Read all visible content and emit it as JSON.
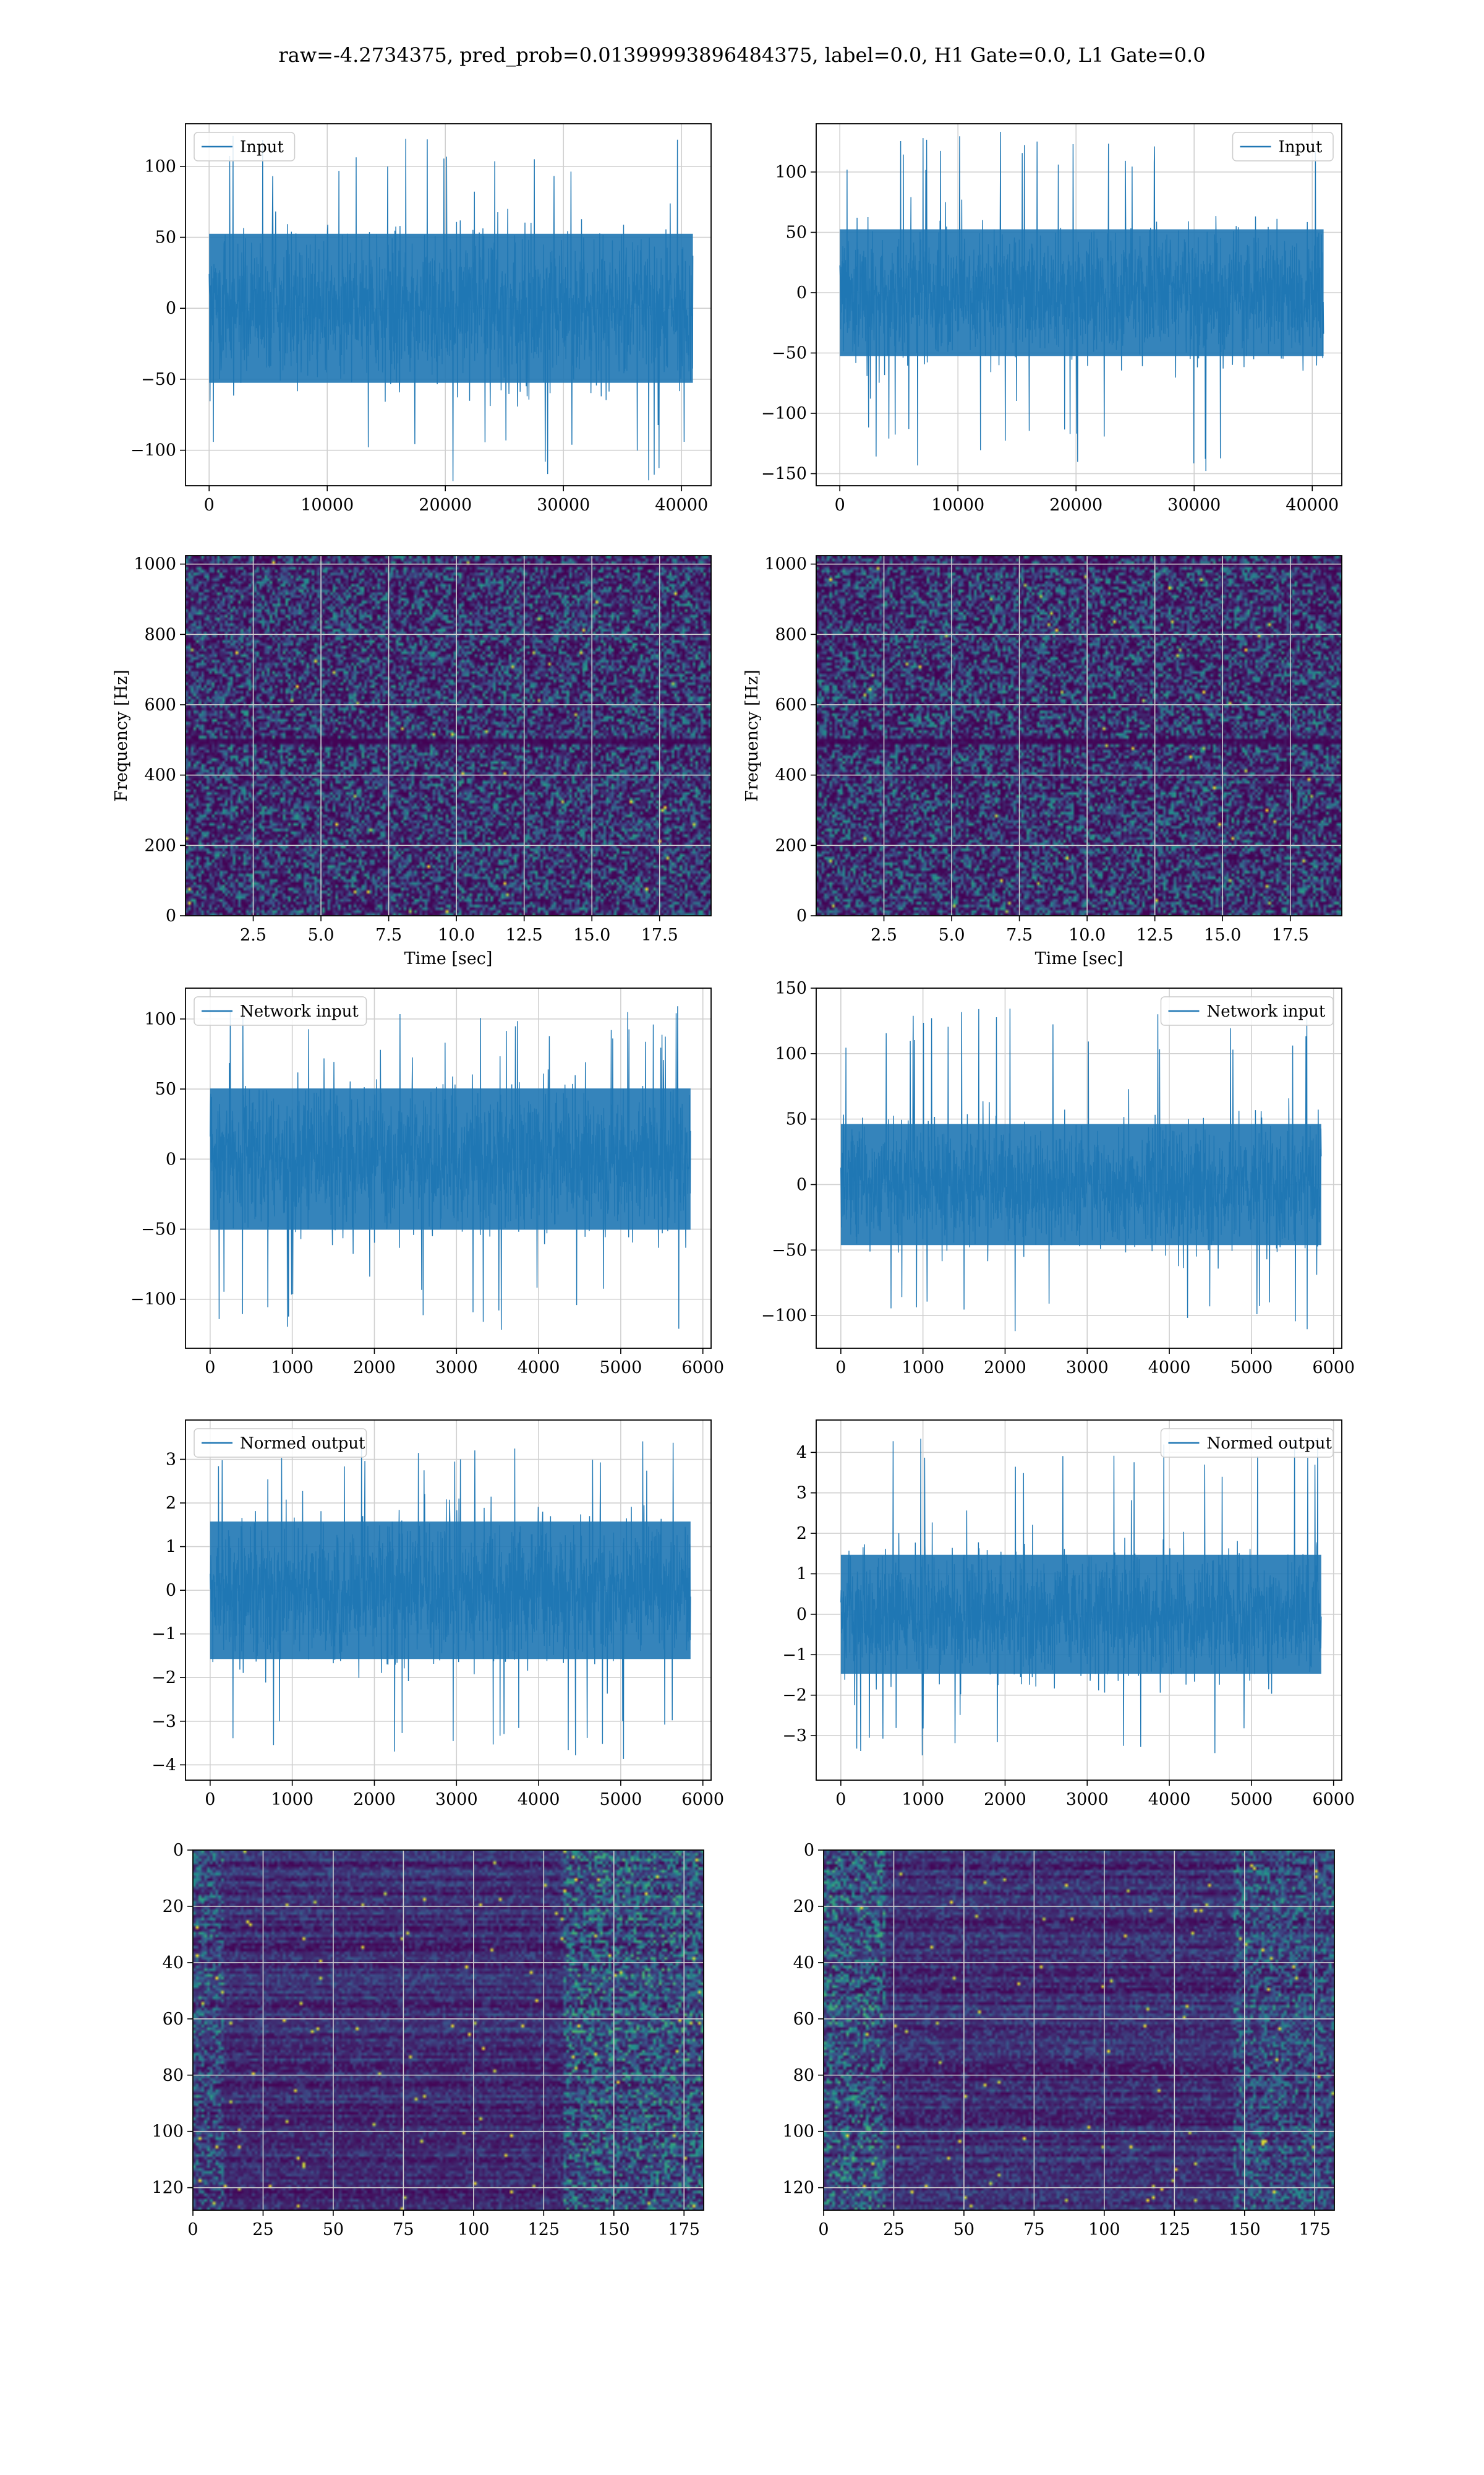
{
  "figure": {
    "title": "raw=-4.2734375, pred_prob=0.01399993896484375, label=0.0, H1 Gate=0.0, L1 Gate=0.0"
  },
  "colors": {
    "line": "#1f77b4",
    "grid": "#d0d0d0",
    "viridis_dark": "#440154",
    "viridis_mid": "#21918c",
    "viridis_bright": "#fde725"
  },
  "chart_data": [
    {
      "id": "input-h1",
      "type": "line",
      "xlim": [
        -2000,
        42500
      ],
      "ylim": [
        -125,
        130
      ],
      "xticks": [
        0,
        10000,
        20000,
        30000,
        40000
      ],
      "xtick_labels": [
        "0",
        "10000",
        "20000",
        "30000",
        "40000"
      ],
      "yticks": [
        -100,
        -50,
        0,
        50,
        100
      ],
      "ytick_labels": [
        "−100",
        "−50",
        "0",
        "50",
        "100"
      ],
      "x_range": [
        0,
        40960
      ],
      "amplitude": 25,
      "peak_min": -122,
      "peak_max": 122,
      "legend": {
        "label": "Input",
        "position": "upper left"
      },
      "grid": true,
      "xlabel": "",
      "ylabel": ""
    },
    {
      "id": "input-l1",
      "type": "line",
      "xlim": [
        -2000,
        42500
      ],
      "ylim": [
        -160,
        140
      ],
      "xticks": [
        0,
        10000,
        20000,
        30000,
        40000
      ],
      "xtick_labels": [
        "0",
        "10000",
        "20000",
        "30000",
        "40000"
      ],
      "yticks": [
        -150,
        -100,
        -50,
        0,
        50,
        100
      ],
      "ytick_labels": [
        "−150",
        "−100",
        "−50",
        "0",
        "50",
        "100"
      ],
      "x_range": [
        0,
        40960
      ],
      "amplitude": 25,
      "peak_min": -148,
      "peak_max": 135,
      "legend": {
        "label": "Input",
        "position": "upper right"
      },
      "grid": true,
      "xlabel": "",
      "ylabel": ""
    },
    {
      "id": "spectrogram-h1",
      "type": "heatmap",
      "xlim": [
        0,
        19.4
      ],
      "ylim": [
        0,
        1024
      ],
      "xticks": [
        2.5,
        5.0,
        7.5,
        10.0,
        12.5,
        15.0,
        17.5
      ],
      "xtick_labels": [
        "2.5",
        "5.0",
        "7.5",
        "10.0",
        "12.5",
        "15.0",
        "17.5"
      ],
      "yticks": [
        0,
        200,
        400,
        600,
        800,
        1000
      ],
      "ytick_labels": [
        "0",
        "200",
        "400",
        "600",
        "800",
        "1000"
      ],
      "xlabel": "Time [sec]",
      "ylabel": "Frequency [Hz]",
      "grid": true,
      "dark_bands": [
        1000,
        500
      ]
    },
    {
      "id": "spectrogram-l1",
      "type": "heatmap",
      "xlim": [
        0,
        19.4
      ],
      "ylim": [
        0,
        1024
      ],
      "xticks": [
        2.5,
        5.0,
        7.5,
        10.0,
        12.5,
        15.0,
        17.5
      ],
      "xtick_labels": [
        "2.5",
        "5.0",
        "7.5",
        "10.0",
        "12.5",
        "15.0",
        "17.5"
      ],
      "yticks": [
        0,
        200,
        400,
        600,
        800,
        1000
      ],
      "ytick_labels": [
        "0",
        "200",
        "400",
        "600",
        "800",
        "1000"
      ],
      "xlabel": "Time [sec]",
      "ylabel": "Frequency [Hz]",
      "grid": true,
      "dark_bands": [
        1000,
        500
      ]
    },
    {
      "id": "network-input-h1",
      "type": "line",
      "xlim": [
        -300,
        6100
      ],
      "ylim": [
        -135,
        122
      ],
      "xticks": [
        0,
        1000,
        2000,
        3000,
        4000,
        5000,
        6000
      ],
      "xtick_labels": [
        "0",
        "1000",
        "2000",
        "3000",
        "4000",
        "5000",
        "6000"
      ],
      "yticks": [
        -100,
        -50,
        0,
        50,
        100
      ],
      "ytick_labels": [
        "−100",
        "−50",
        "0",
        "50",
        "100"
      ],
      "x_range": [
        0,
        5850
      ],
      "amplitude": 24,
      "peak_min": -122,
      "peak_max": 110,
      "legend": {
        "label": "Network input",
        "position": "upper left"
      },
      "grid": true,
      "xlabel": "",
      "ylabel": ""
    },
    {
      "id": "network-input-l1",
      "type": "line",
      "xlim": [
        -300,
        6100
      ],
      "ylim": [
        -125,
        150
      ],
      "xticks": [
        0,
        1000,
        2000,
        3000,
        4000,
        5000,
        6000
      ],
      "xtick_labels": [
        "0",
        "1000",
        "2000",
        "3000",
        "4000",
        "5000",
        "6000"
      ],
      "yticks": [
        -100,
        -50,
        0,
        50,
        100,
        150
      ],
      "ytick_labels": [
        "−100",
        "−50",
        "0",
        "50",
        "100",
        "150"
      ],
      "x_range": [
        0,
        5850
      ],
      "amplitude": 22,
      "peak_min": -112,
      "peak_max": 137,
      "legend": {
        "label": "Network input",
        "position": "upper right"
      },
      "grid": true,
      "xlabel": "",
      "ylabel": ""
    },
    {
      "id": "normed-output-h1",
      "type": "line",
      "xlim": [
        -300,
        6100
      ],
      "ylim": [
        -4.35,
        3.9
      ],
      "xticks": [
        0,
        1000,
        2000,
        3000,
        4000,
        5000,
        6000
      ],
      "xtick_labels": [
        "0",
        "1000",
        "2000",
        "3000",
        "4000",
        "5000",
        "6000"
      ],
      "yticks": [
        -4,
        -3,
        -2,
        -1,
        0,
        1,
        2,
        3
      ],
      "ytick_labels": [
        "−4",
        "−3",
        "−2",
        "−1",
        "0",
        "1",
        "2",
        "3"
      ],
      "x_range": [
        0,
        5850
      ],
      "amplitude": 0.75,
      "peak_min": -3.9,
      "peak_max": 3.6,
      "legend": {
        "label": "Normed output",
        "position": "upper left"
      },
      "grid": true,
      "xlabel": "",
      "ylabel": ""
    },
    {
      "id": "normed-output-l1",
      "type": "line",
      "xlim": [
        -300,
        6100
      ],
      "ylim": [
        -4.1,
        4.8
      ],
      "xticks": [
        0,
        1000,
        2000,
        3000,
        4000,
        5000,
        6000
      ],
      "xtick_labels": [
        "0",
        "1000",
        "2000",
        "3000",
        "4000",
        "5000",
        "6000"
      ],
      "yticks": [
        -3,
        -2,
        -1,
        0,
        1,
        2,
        3,
        4
      ],
      "ytick_labels": [
        "−3",
        "−2",
        "−1",
        "0",
        "1",
        "2",
        "3",
        "4"
      ],
      "x_range": [
        0,
        5850
      ],
      "amplitude": 0.7,
      "peak_min": -3.6,
      "peak_max": 4.5,
      "legend": {
        "label": "Normed output",
        "position": "upper right"
      },
      "grid": true,
      "xlabel": "",
      "ylabel": ""
    },
    {
      "id": "feature-map-h1",
      "type": "heatmap",
      "xlim": [
        0,
        182
      ],
      "ylim": [
        128,
        0
      ],
      "xticks": [
        0,
        25,
        50,
        75,
        100,
        125,
        150,
        175
      ],
      "xtick_labels": [
        "0",
        "25",
        "50",
        "75",
        "100",
        "125",
        "150",
        "175"
      ],
      "yticks": [
        0,
        20,
        40,
        60,
        80,
        100,
        120
      ],
      "ytick_labels": [
        "0",
        "20",
        "40",
        "60",
        "80",
        "100",
        "120"
      ],
      "xlabel": "",
      "ylabel": "",
      "grid": true
    },
    {
      "id": "feature-map-l1",
      "type": "heatmap",
      "xlim": [
        0,
        182
      ],
      "ylim": [
        128,
        0
      ],
      "xticks": [
        0,
        25,
        50,
        75,
        100,
        125,
        150,
        175
      ],
      "xtick_labels": [
        "0",
        "25",
        "50",
        "75",
        "100",
        "125",
        "150",
        "175"
      ],
      "yticks": [
        0,
        20,
        40,
        60,
        80,
        100,
        120
      ],
      "ytick_labels": [
        "0",
        "20",
        "40",
        "60",
        "80",
        "100",
        "120"
      ],
      "xlabel": "",
      "ylabel": "",
      "grid": true
    }
  ]
}
